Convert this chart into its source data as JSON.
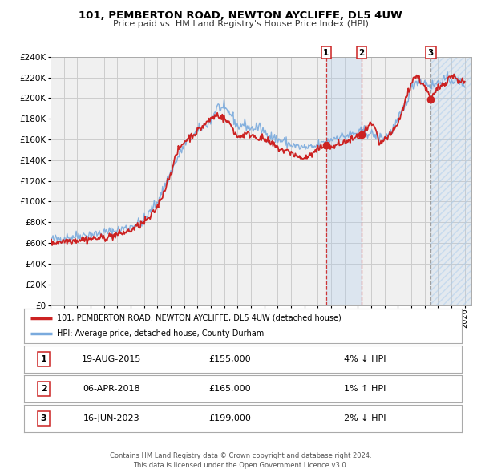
{
  "title": "101, PEMBERTON ROAD, NEWTON AYCLIFFE, DL5 4UW",
  "subtitle": "Price paid vs. HM Land Registry's House Price Index (HPI)",
  "hpi_color": "#7aaadd",
  "price_color": "#cc2222",
  "background_color": "#ffffff",
  "grid_color": "#cccccc",
  "plot_bg_color": "#f0f0f0",
  "ylim": [
    0,
    240000
  ],
  "yticks": [
    0,
    20000,
    40000,
    60000,
    80000,
    100000,
    120000,
    140000,
    160000,
    180000,
    200000,
    220000,
    240000
  ],
  "xlim_start": 1995.0,
  "xlim_end": 2026.5,
  "legend_label_price": "101, PEMBERTON ROAD, NEWTON AYCLIFFE, DL5 4UW (detached house)",
  "legend_label_hpi": "HPI: Average price, detached house, County Durham",
  "sale_points": [
    {
      "label": "1",
      "date": "19-AUG-2015",
      "price": 155000,
      "pct": "4%",
      "dir": "↓",
      "x": 2015.63,
      "line_color": "#cc2222",
      "line_style": "--"
    },
    {
      "label": "2",
      "date": "06-APR-2018",
      "price": 165000,
      "pct": "1%",
      "dir": "↑",
      "x": 2018.27,
      "line_color": "#cc2222",
      "line_style": "--"
    },
    {
      "label": "3",
      "date": "16-JUN-2023",
      "price": 199000,
      "pct": "2%",
      "dir": "↓",
      "x": 2023.46,
      "line_color": "#999999",
      "line_style": "--"
    }
  ],
  "footer": "Contains HM Land Registry data © Crown copyright and database right 2024.\nThis data is licensed under the Open Government Licence v3.0.",
  "shade_between_1_2": true,
  "shade_after_3": true
}
